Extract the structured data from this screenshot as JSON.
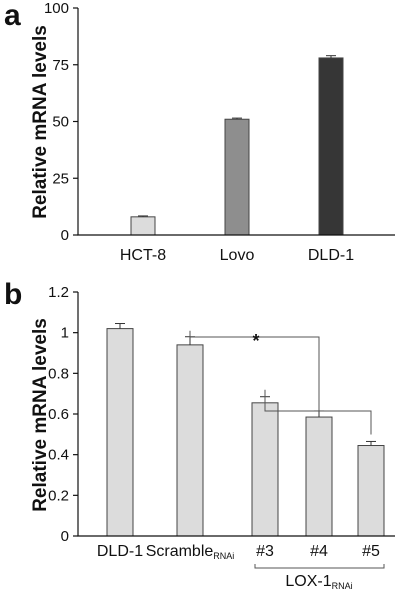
{
  "chart_data": [
    {
      "panel": "a",
      "type": "bar",
      "ylabel": "Relative mRNA levels",
      "ylim": [
        0,
        100
      ],
      "yticks": [
        0,
        25,
        50,
        75,
        100
      ],
      "categories": [
        "HCT-8",
        "Lovo",
        "DLD-1"
      ],
      "values": [
        8,
        51,
        78
      ],
      "errors": [
        0.4,
        0.5,
        1.0
      ],
      "colors": [
        "#dcdcdc",
        "#8e8e8e",
        "#363636"
      ]
    },
    {
      "panel": "b",
      "type": "bar",
      "ylabel": "Relative mRNA levels",
      "ylim": [
        0,
        1.2
      ],
      "yticks": [
        "0",
        "0.2",
        "0.4",
        "0.6",
        "0.8",
        "1",
        "1.2"
      ],
      "categories": [
        {
          "main": "DLD-1",
          "sub": ""
        },
        {
          "main": "Scramble",
          "sub": "RNAi"
        },
        {
          "main": "#3",
          "sub": ""
        },
        {
          "main": "#4",
          "sub": ""
        },
        {
          "main": "#5",
          "sub": ""
        }
      ],
      "values": [
        1.02,
        0.94,
        0.655,
        0.585,
        0.445
      ],
      "errors": [
        0.025,
        0.04,
        0.03,
        0.03,
        0.02
      ],
      "color": "#dcdcdc",
      "group_label": {
        "main": "LOX-1",
        "sub": "RNAi"
      },
      "significance": "*"
    }
  ]
}
